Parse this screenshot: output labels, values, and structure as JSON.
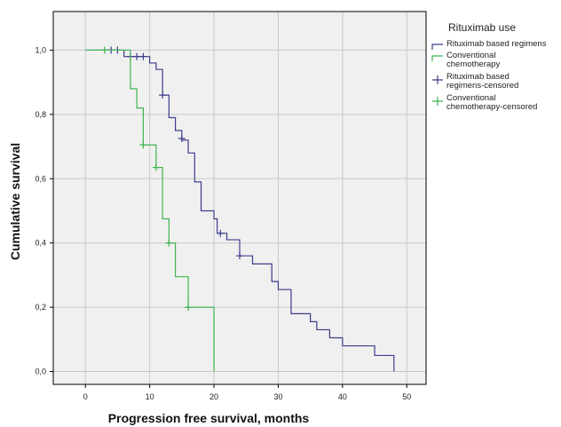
{
  "chart_data": {
    "type": "line",
    "subtype": "kaplan-meier-step",
    "xlabel": "Progression free survival, months",
    "ylabel": "Cumulative survival",
    "xlim": [
      -5,
      53
    ],
    "ylim": [
      -0.04,
      1.12
    ],
    "xticks": [
      0,
      10,
      20,
      30,
      40,
      50
    ],
    "yticks": [
      0.0,
      0.2,
      0.4,
      0.6,
      0.8,
      1.0
    ],
    "ytick_labels": [
      "0,0",
      "0,2",
      "0,4",
      "0,6",
      "0,8",
      "1,0"
    ],
    "grid": true,
    "legend": {
      "title": "Rituximab use",
      "placement": "right-outside",
      "entries": [
        {
          "line1": "Rituximab based regimens",
          "line2": "",
          "color": "#3c3c8c",
          "kind": "line"
        },
        {
          "line1": "Conventional",
          "line2": "chemotherapy",
          "color": "#3fb34f",
          "kind": "line"
        },
        {
          "line1": "Rituximab based",
          "line2": "regimens-censored",
          "color": "#3c3c8c",
          "kind": "censor"
        },
        {
          "line1": "Conventional",
          "line2": "chemotherapy-censored",
          "color": "#3fb34f",
          "kind": "censor"
        }
      ]
    },
    "series": [
      {
        "name": "Rituximab based regimens",
        "color": "#3c3c8c",
        "steps": [
          [
            0,
            1.0
          ],
          [
            6,
            0.98
          ],
          [
            10,
            0.96
          ],
          [
            11,
            0.94
          ],
          [
            12,
            0.86
          ],
          [
            13,
            0.79
          ],
          [
            14,
            0.75
          ],
          [
            15,
            0.72
          ],
          [
            16,
            0.68
          ],
          [
            17,
            0.59
          ],
          [
            18,
            0.5
          ],
          [
            20,
            0.475
          ],
          [
            20.5,
            0.43
          ],
          [
            22,
            0.41
          ],
          [
            24,
            0.36
          ],
          [
            26,
            0.335
          ],
          [
            29,
            0.28
          ],
          [
            30,
            0.255
          ],
          [
            32,
            0.18
          ],
          [
            35,
            0.155
          ],
          [
            36,
            0.13
          ],
          [
            38,
            0.105
          ],
          [
            40,
            0.08
          ],
          [
            45,
            0.05
          ],
          [
            48,
            0.0
          ]
        ],
        "censored": [
          [
            4,
            1.0
          ],
          [
            5,
            1.0
          ],
          [
            7,
            0.98
          ],
          [
            8,
            0.98
          ],
          [
            9,
            0.98
          ],
          [
            12,
            0.86
          ],
          [
            15,
            0.725
          ],
          [
            21,
            0.43
          ],
          [
            24,
            0.36
          ]
        ]
      },
      {
        "name": "Conventional chemotherapy",
        "color": "#3fb34f",
        "steps": [
          [
            0,
            1.0
          ],
          [
            7,
            0.88
          ],
          [
            8,
            0.82
          ],
          [
            9,
            0.705
          ],
          [
            11,
            0.635
          ],
          [
            12,
            0.475
          ],
          [
            13,
            0.4
          ],
          [
            14,
            0.295
          ],
          [
            16,
            0.2
          ],
          [
            20,
            0.0
          ]
        ],
        "censored": [
          [
            3,
            1.0
          ],
          [
            9,
            0.705
          ],
          [
            11,
            0.635
          ],
          [
            13,
            0.4
          ],
          [
            16,
            0.2
          ]
        ]
      }
    ]
  }
}
